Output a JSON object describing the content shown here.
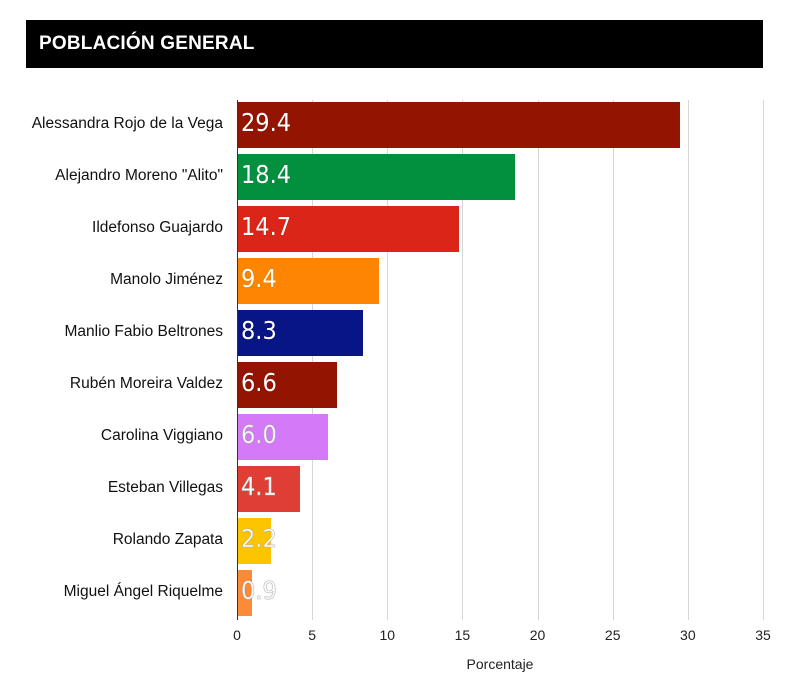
{
  "header": {
    "title": "POBLACIÓN GENERAL"
  },
  "chart_data": {
    "type": "bar",
    "orientation": "horizontal",
    "title": "POBLACIÓN GENERAL",
    "xlabel": "Porcentaje",
    "ylabel": "",
    "xlim": [
      0,
      35
    ],
    "xticks": [
      "0",
      "5",
      "10",
      "15",
      "20",
      "25",
      "30",
      "35"
    ],
    "grid": true,
    "legend": "none",
    "categories": [
      "Alessandra Rojo de la Vega",
      "Alejandro Moreno \"Alito\"",
      "Ildefonso Guajardo",
      "Manolo Jiménez",
      "Manlio Fabio Beltrones",
      "Rubén Moreira Valdez",
      "Carolina Viggiano",
      "Esteban Villegas",
      "Rolando Zapata",
      "Miguel Ángel Riquelme"
    ],
    "values": [
      29.4,
      18.4,
      14.7,
      9.4,
      8.3,
      6.6,
      6.0,
      4.1,
      2.2,
      0.9
    ],
    "value_labels": [
      "29.4",
      "18.4",
      "14.7",
      "9.4",
      "8.3",
      "6.6",
      "6.0",
      "4.1",
      "2.2",
      "0.9"
    ],
    "colors": [
      "#941402",
      "#02903F",
      "#DA2518",
      "#FE8501",
      "#081585",
      "#941402",
      "#D47AF8",
      "#DF3E35",
      "#FCC500",
      "#FB8B36"
    ]
  }
}
